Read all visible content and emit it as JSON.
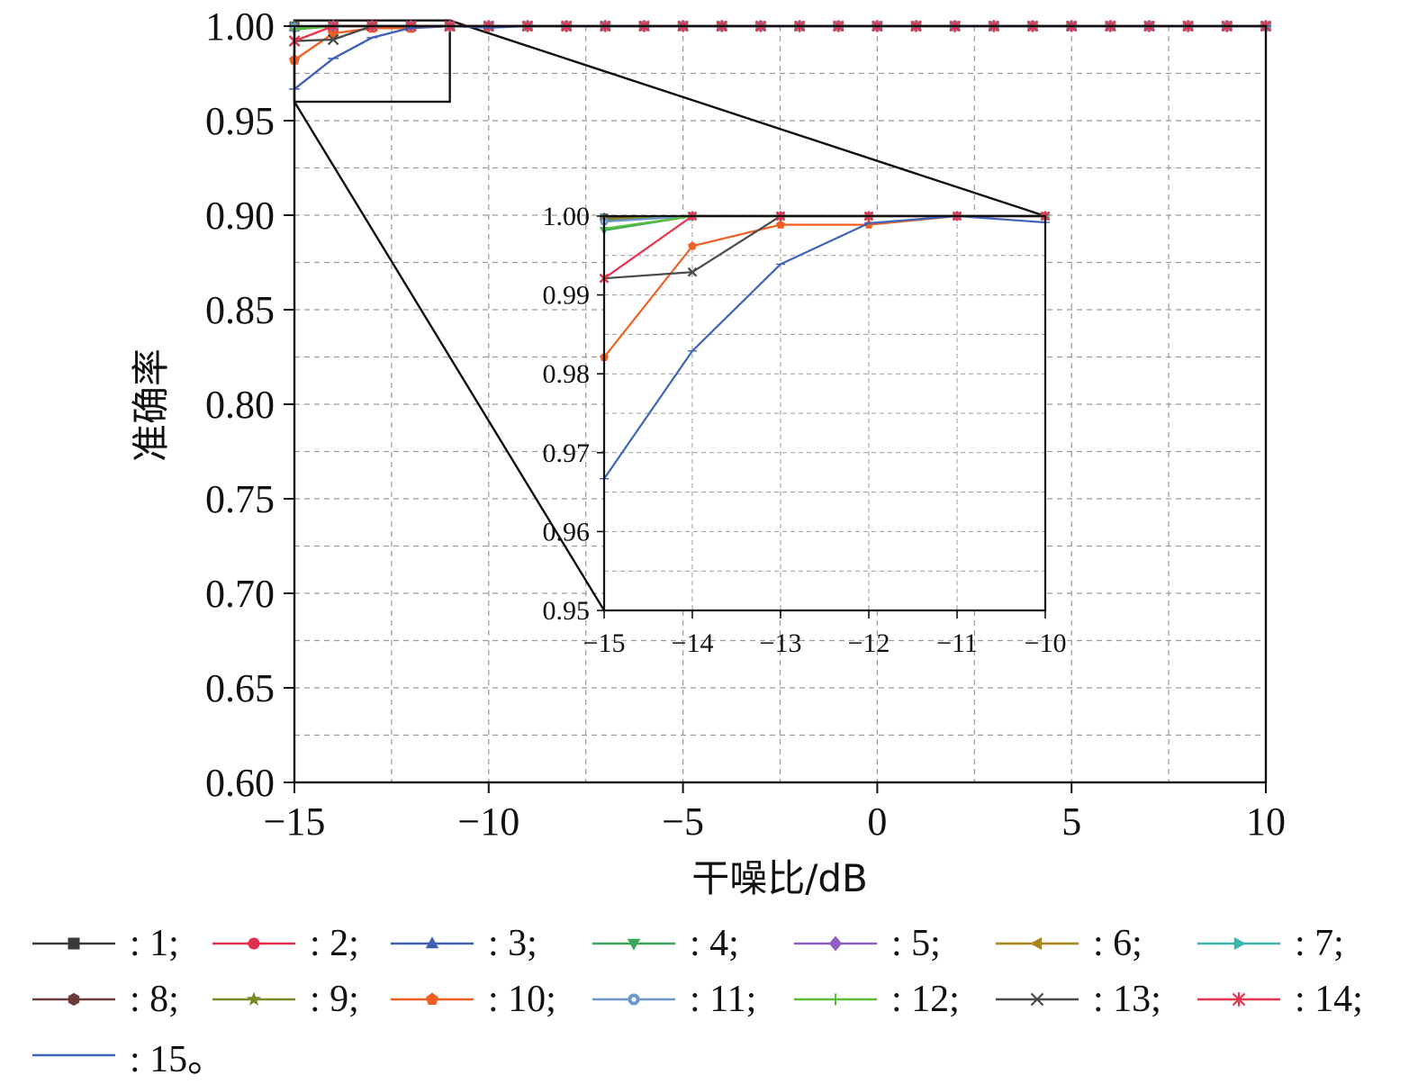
{
  "chart_data": {
    "type": "line",
    "xlabel": "干噪比/dB",
    "ylabel": "准确率",
    "xlim": [
      -15,
      10
    ],
    "ylim": [
      0.6,
      1.0
    ],
    "x_ticks": [
      "−15",
      "−10",
      "−5",
      "0",
      "5",
      "10"
    ],
    "y_ticks": [
      "0.60",
      "0.65",
      "0.70",
      "0.75",
      "0.80",
      "0.85",
      "0.90",
      "0.95",
      "1.00"
    ],
    "grid": true,
    "x": [
      -15,
      -14,
      -13,
      -12,
      -11,
      -10,
      -9,
      -8,
      -7,
      -6,
      -5,
      -4,
      -3,
      -2,
      -1,
      0,
      1,
      2,
      3,
      4,
      5,
      6,
      7,
      8,
      9,
      10
    ],
    "series": [
      {
        "name": "1",
        "color": "#3a3a3a",
        "marker": "square",
        "values": [
          0.9998,
          1,
          1,
          1,
          1,
          1,
          1,
          1,
          1,
          1,
          1,
          1,
          1,
          1,
          1,
          1,
          1,
          1,
          1,
          1,
          1,
          1,
          1,
          1,
          1,
          1
        ]
      },
      {
        "name": "2",
        "color": "#e02f4b",
        "marker": "circle",
        "values": [
          0.9995,
          1,
          1,
          1,
          1,
          1,
          1,
          1,
          1,
          1,
          1,
          1,
          1,
          1,
          1,
          1,
          1,
          1,
          1,
          1,
          1,
          1,
          1,
          1,
          1,
          1
        ]
      },
      {
        "name": "3",
        "color": "#3c5fae",
        "marker": "triangle-up",
        "values": [
          0.9999,
          1,
          1,
          1,
          1,
          1,
          1,
          1,
          1,
          1,
          1,
          1,
          1,
          1,
          1,
          1,
          1,
          1,
          1,
          1,
          1,
          1,
          1,
          1,
          1,
          1
        ]
      },
      {
        "name": "4",
        "color": "#3aa45a",
        "marker": "triangle-down",
        "values": [
          0.9982,
          1,
          1,
          1,
          1,
          1,
          1,
          1,
          1,
          1,
          1,
          1,
          1,
          1,
          1,
          1,
          1,
          1,
          1,
          1,
          1,
          1,
          1,
          1,
          1,
          1
        ]
      },
      {
        "name": "5",
        "color": "#8e5cc4",
        "marker": "diamond",
        "values": [
          0.9996,
          1,
          1,
          1,
          1,
          1,
          1,
          1,
          1,
          1,
          1,
          1,
          1,
          1,
          1,
          1,
          1,
          1,
          1,
          1,
          1,
          1,
          1,
          1,
          1,
          1
        ]
      },
      {
        "name": "6",
        "color": "#a8841c",
        "marker": "triangle-left",
        "values": [
          0.9997,
          1,
          1,
          1,
          1,
          1,
          1,
          1,
          1,
          1,
          1,
          1,
          1,
          1,
          1,
          1,
          1,
          1,
          1,
          1,
          1,
          1,
          1,
          1,
          1,
          1
        ]
      },
      {
        "name": "7",
        "color": "#38b5ad",
        "marker": "triangle-right",
        "values": [
          0.9998,
          1,
          1,
          1,
          1,
          1,
          1,
          1,
          1,
          1,
          1,
          1,
          1,
          1,
          1,
          1,
          1,
          1,
          1,
          1,
          1,
          1,
          1,
          1,
          1,
          1
        ]
      },
      {
        "name": "8",
        "color": "#6b3a3a",
        "marker": "hexagon",
        "values": [
          0.9997,
          1,
          1,
          1,
          1,
          1,
          1,
          1,
          1,
          1,
          1,
          1,
          1,
          1,
          1,
          1,
          1,
          1,
          1,
          1,
          1,
          1,
          1,
          1,
          1,
          1
        ]
      },
      {
        "name": "9",
        "color": "#7b8a25",
        "marker": "star",
        "values": [
          0.9996,
          1,
          1,
          1,
          1,
          1,
          1,
          1,
          1,
          1,
          1,
          1,
          1,
          1,
          1,
          1,
          1,
          1,
          1,
          1,
          1,
          1,
          1,
          1,
          1,
          1
        ]
      },
      {
        "name": "10",
        "color": "#f06023",
        "marker": "pentagon",
        "values": [
          0.9821,
          0.9962,
          0.9989,
          0.9989,
          1,
          1,
          1,
          1,
          1,
          1,
          1,
          1,
          1,
          1,
          1,
          1,
          1,
          1,
          1,
          1,
          1,
          1,
          1,
          1,
          1,
          1
        ]
      },
      {
        "name": "11",
        "color": "#6a96cf",
        "marker": "circle-dot",
        "values": [
          0.9993,
          1,
          1,
          1,
          1,
          1,
          1,
          1,
          1,
          1,
          1,
          1,
          1,
          1,
          1,
          1,
          1,
          1,
          1,
          1,
          1,
          1,
          1,
          1,
          1,
          1
        ]
      },
      {
        "name": "12",
        "color": "#5cbf3c",
        "marker": "plus",
        "values": [
          0.9984,
          1,
          1,
          1,
          1,
          1,
          1,
          1,
          1,
          1,
          1,
          1,
          1,
          1,
          1,
          1,
          1,
          1,
          1,
          1,
          1,
          1,
          1,
          1,
          1,
          1
        ]
      },
      {
        "name": "13",
        "color": "#4a4a4a",
        "marker": "x",
        "values": [
          0.9921,
          0.9929,
          1,
          1,
          1,
          1,
          1,
          1,
          1,
          1,
          1,
          1,
          1,
          1,
          1,
          1,
          1,
          1,
          1,
          1,
          1,
          1,
          1,
          1,
          1,
          1
        ]
      },
      {
        "name": "14",
        "color": "#e8344e",
        "marker": "asterisk",
        "values": [
          0.9921,
          1,
          1,
          1,
          1,
          1,
          1,
          1,
          1,
          1,
          1,
          1,
          1,
          1,
          1,
          1,
          1,
          1,
          1,
          1,
          1,
          1,
          1,
          1,
          1,
          1
        ]
      },
      {
        "name": "15",
        "color": "#3f63b8",
        "marker": "none",
        "values": [
          0.9667,
          0.9829,
          0.9939,
          0.9991,
          1,
          0.9992,
          1,
          1,
          1,
          1,
          1,
          1,
          1,
          1,
          1,
          1,
          1,
          1,
          1,
          1,
          1,
          1,
          1,
          1,
          1,
          1
        ]
      }
    ],
    "inset": {
      "xlim": [
        -15,
        -10
      ],
      "ylim": [
        0.95,
        1.0
      ],
      "x_ticks": [
        "−15",
        "−14",
        "−13",
        "−12",
        "−11",
        "−10"
      ],
      "y_ticks": [
        "0.95",
        "0.96",
        "0.97",
        "0.98",
        "0.99",
        "1.00"
      ],
      "zoom_region": {
        "x": [
          -15,
          -11
        ],
        "y": [
          0.96,
          1.003
        ]
      }
    },
    "legend": {
      "placement": "bottom",
      "items": [
        ": 1;",
        ": 2;",
        ": 3;",
        ": 4;",
        ": 5;",
        ": 6;",
        ": 7;",
        ": 8;",
        ": 9;",
        ": 10;",
        ": 11;",
        ": 12;",
        ": 13;",
        ": 14;",
        ": 15。"
      ]
    }
  }
}
